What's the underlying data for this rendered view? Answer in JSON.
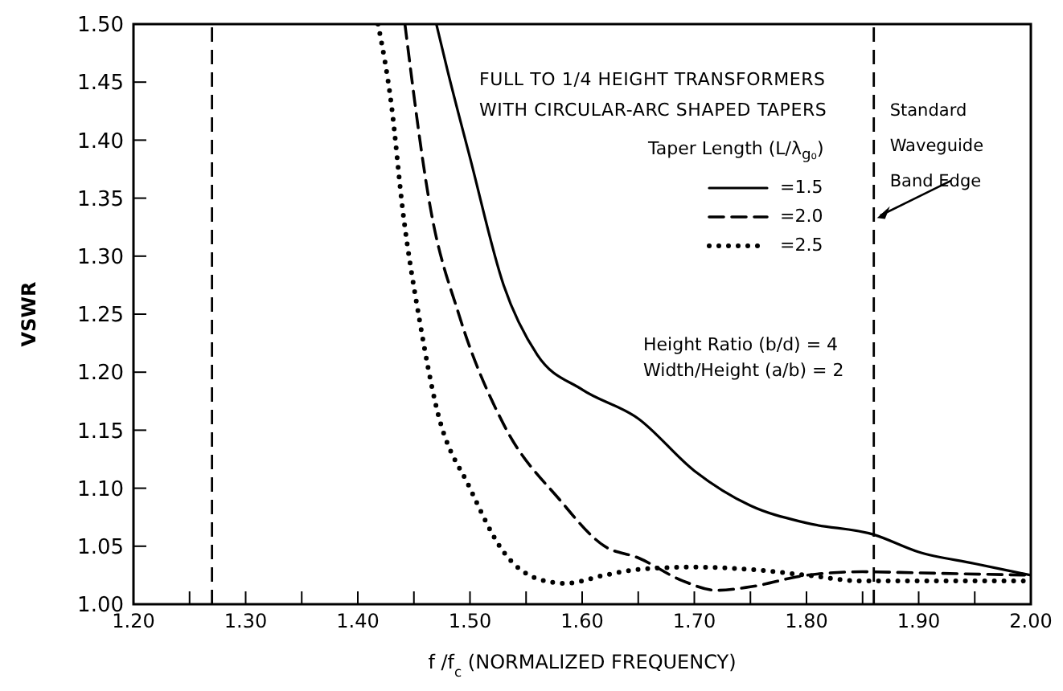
{
  "chart_data": {
    "type": "line",
    "title": "FULL TO 1/4 HEIGHT TRANSFORMERS WITH CIRCULAR-ARC SHAPED TAPERS",
    "xlabel": "f /f$_{c}$ (NORMALIZED FREQUENCY)",
    "ylabel": "VSWR",
    "legend_title": "Taper Length (L/λ$_{g₀}$)",
    "legend": "top right",
    "marker": "none",
    "xlim": [
      1.2,
      2.0
    ],
    "xticks": [
      {
        "value": 1.2,
        "label": "1.20"
      },
      {
        "value": 1.25,
        "label": null
      },
      {
        "value": 1.3,
        "label": "1.30"
      },
      {
        "value": 1.35,
        "label": null
      },
      {
        "value": 1.4,
        "label": "1.40"
      },
      {
        "value": 1.45,
        "label": null
      },
      {
        "value": 1.5,
        "label": "1.50"
      },
      {
        "value": 1.55,
        "label": null
      },
      {
        "value": 1.6,
        "label": "1.60"
      },
      {
        "value": 1.65,
        "label": null
      },
      {
        "value": 1.7,
        "label": "1.70"
      },
      {
        "value": 1.75,
        "label": null
      },
      {
        "value": 1.8,
        "label": "1.80"
      },
      {
        "value": 1.85,
        "label": null
      },
      {
        "value": 1.9,
        "label": "1.90"
      },
      {
        "value": 1.95,
        "label": null
      },
      {
        "value": 2.0,
        "label": "2.00"
      }
    ],
    "ylim": [
      1.0,
      1.5
    ],
    "yticks": [
      {
        "value": 1.0,
        "label": "1.00"
      },
      {
        "value": 1.05,
        "label": "1.05"
      },
      {
        "value": 1.1,
        "label": "1.10"
      },
      {
        "value": 1.15,
        "label": "1.15"
      },
      {
        "value": 1.2,
        "label": "1.20"
      },
      {
        "value": 1.25,
        "label": "1.25"
      },
      {
        "value": 1.3,
        "label": "1.30"
      },
      {
        "value": 1.35,
        "label": "1.35"
      },
      {
        "value": 1.4,
        "label": "1.40"
      },
      {
        "value": 1.45,
        "label": "1.45"
      },
      {
        "value": 1.5,
        "label": "1.50"
      }
    ],
    "grid": false,
    "series": [
      {
        "name": "=1.5",
        "color": "#000000",
        "line_style": "solid",
        "x": [
          1.47,
          1.48,
          1.5,
          1.53,
          1.56,
          1.6,
          1.65,
          1.7,
          1.75,
          1.8,
          1.86,
          1.9,
          1.95,
          2.0
        ],
        "values": [
          1.5,
          1.46,
          1.385,
          1.275,
          1.215,
          1.185,
          1.16,
          1.115,
          1.085,
          1.07,
          1.06,
          1.045,
          1.035,
          1.025
        ]
      },
      {
        "name": "=2.0",
        "color": "#000000",
        "line_style": "dashed",
        "x": [
          1.442,
          1.465,
          1.49,
          1.53,
          1.58,
          1.62,
          1.65,
          1.69,
          1.72,
          1.75,
          1.8,
          1.85,
          1.9,
          2.0
        ],
        "values": [
          1.5,
          1.34,
          1.25,
          1.155,
          1.09,
          1.05,
          1.04,
          1.02,
          1.012,
          1.015,
          1.025,
          1.028,
          1.027,
          1.025
        ]
      },
      {
        "name": "=2.5",
        "color": "#000000",
        "line_style": "dotted",
        "x": [
          1.418,
          1.43,
          1.44,
          1.455,
          1.47,
          1.5,
          1.53,
          1.56,
          1.585,
          1.62,
          1.65,
          1.7,
          1.75,
          1.8,
          1.85,
          1.9,
          2.0
        ],
        "values": [
          1.5,
          1.43,
          1.34,
          1.245,
          1.17,
          1.1,
          1.045,
          1.022,
          1.018,
          1.025,
          1.03,
          1.032,
          1.03,
          1.025,
          1.02,
          1.02,
          1.02
        ]
      }
    ],
    "ref_lines": [
      {
        "axis": "x",
        "value": 1.27,
        "line_style": "dashed"
      },
      {
        "axis": "x",
        "value": 1.86,
        "line_style": "dashed",
        "label": "Standard Waveguide Band Edge"
      }
    ],
    "annotations": [
      "Height Ratio (b/d) = 4",
      "Width/Height (a/b) = 2"
    ]
  }
}
